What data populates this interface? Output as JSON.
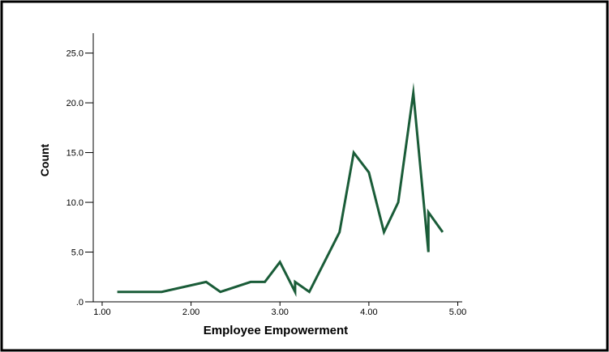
{
  "chart_data": {
    "type": "line",
    "title": "",
    "xlabel": "Employee Empowerment",
    "ylabel": "Count",
    "xlim": [
      0.9,
      5.05
    ],
    "ylim": [
      0,
      27
    ],
    "x_ticks": [
      1,
      2,
      3,
      4,
      5
    ],
    "x_tick_labels": [
      "1.00",
      "2.00",
      "3.00",
      "4.00",
      "5.00"
    ],
    "y_ticks": [
      0,
      5,
      10,
      15,
      20,
      25
    ],
    "y_tick_labels": [
      ".0",
      "5.0",
      "10.0",
      "15.0",
      "20.0",
      "25.0"
    ],
    "grid": false,
    "line_color": "#1a5c38",
    "series": [
      {
        "x": [
          1.17,
          1.67,
          2.17,
          2.33,
          2.67,
          2.83,
          3.0,
          3.17,
          3.17,
          3.33,
          3.67,
          3.83,
          4.0,
          4.17,
          4.33,
          4.5,
          4.67,
          4.67,
          4.83
        ],
        "values": [
          1,
          1,
          2,
          1,
          2,
          2,
          4,
          1,
          2,
          1,
          7,
          15,
          13,
          7,
          10,
          21,
          5,
          9,
          7
        ]
      }
    ]
  }
}
